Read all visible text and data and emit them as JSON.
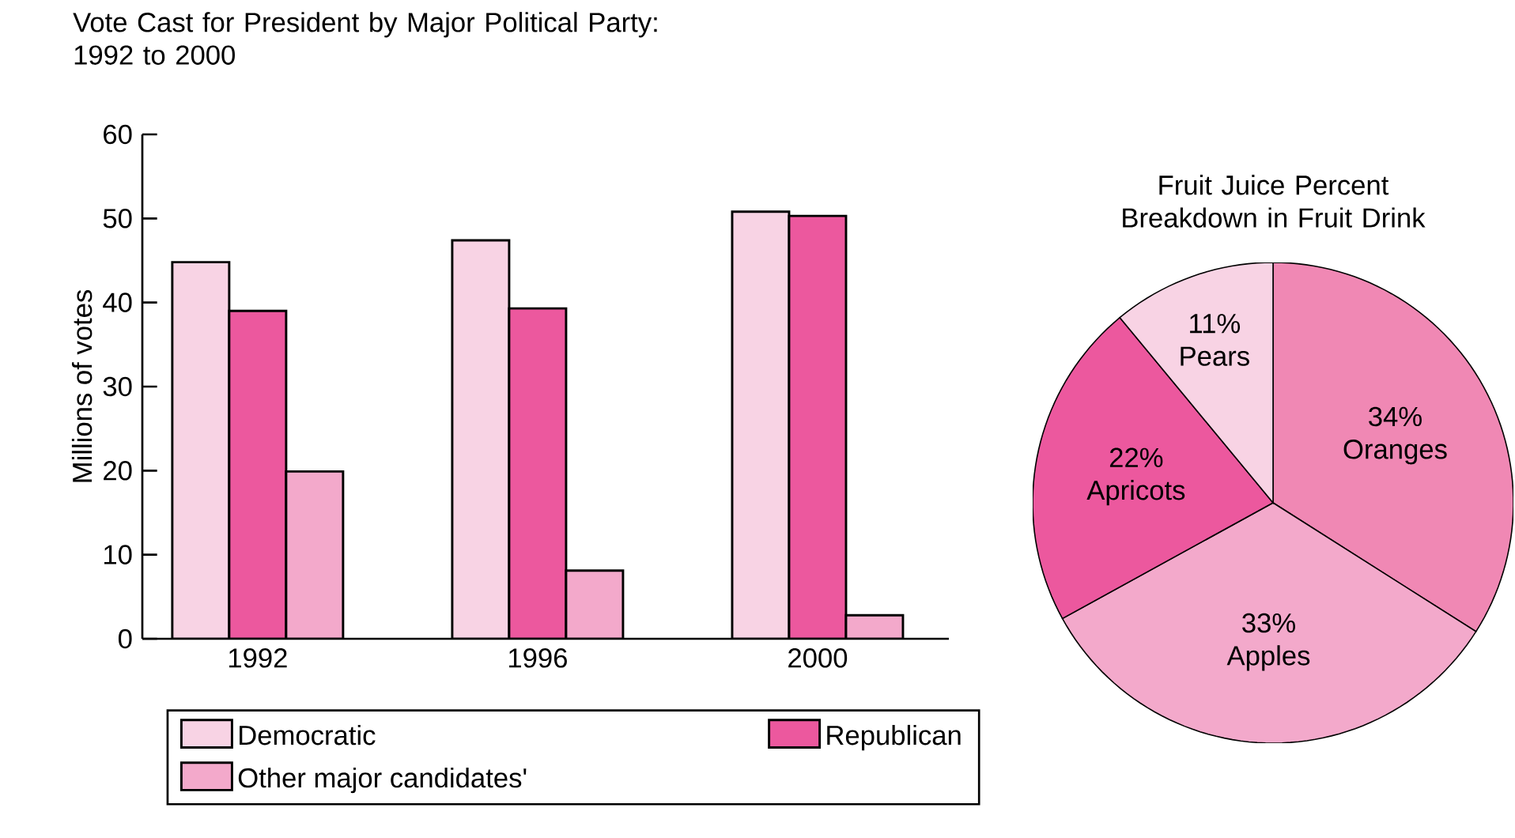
{
  "chart_data": [
    {
      "type": "bar",
      "title": "Vote Cast for President by Major Political Party: 1992 to 2000",
      "ylabel": "Millions of votes",
      "categories": [
        "1992",
        "1996",
        "2000"
      ],
      "series": [
        {
          "name": "Democratic",
          "color": "#f8d3e4",
          "values": [
            44.8,
            47.4,
            50.8
          ]
        },
        {
          "name": "Republican",
          "color": "#ec589e",
          "values": [
            39.0,
            39.3,
            50.3
          ]
        },
        {
          "name": "Other major candidates'",
          "color": "#f3a9cb",
          "values": [
            19.9,
            8.1,
            2.8
          ]
        }
      ],
      "ylim": [
        0,
        60
      ],
      "yticks": [
        0,
        10,
        20,
        30,
        40,
        50,
        60
      ],
      "legend": "bottom"
    },
    {
      "type": "pie",
      "title": "Fruit Juice Percent Breakdown in Fruit Drink",
      "categories": [
        "Oranges",
        "Apples",
        "Apricots",
        "Pears"
      ],
      "values": [
        34,
        33,
        22,
        11
      ],
      "value_labels": [
        "34%",
        "33%",
        "22%",
        "11%"
      ],
      "colors": [
        "#f088b4",
        "#f3a9cb",
        "#ec589e",
        "#f8d3e4"
      ]
    }
  ]
}
